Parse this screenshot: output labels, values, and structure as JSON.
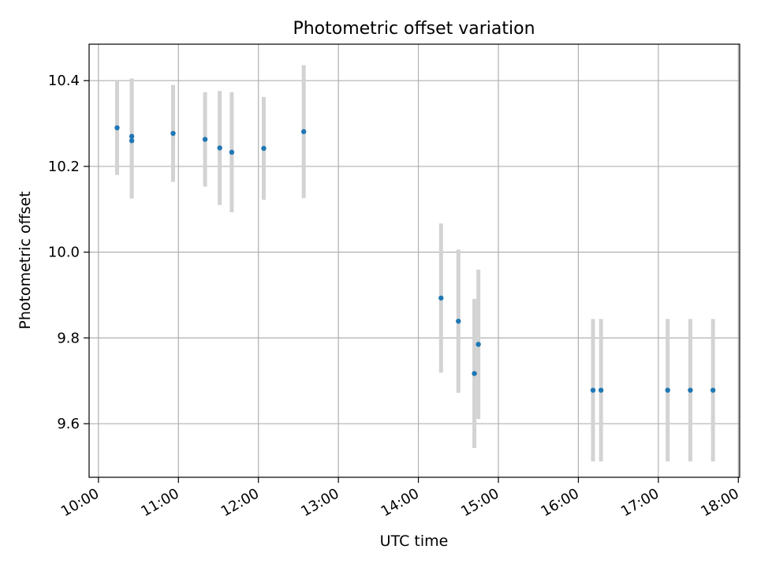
{
  "chart_data": {
    "type": "scatter",
    "title": "Photometric offset variation",
    "xlabel": "UTC time",
    "ylabel": "Photometric offset",
    "xlim": [
      "09:53",
      "18:01"
    ],
    "ylim": [
      9.475,
      10.485
    ],
    "x_ticks": [
      "10:00",
      "11:00",
      "12:00",
      "13:00",
      "14:00",
      "15:00",
      "16:00",
      "17:00",
      "18:00"
    ],
    "y_ticks": [
      "9.6",
      "9.8",
      "10.0",
      "10.2",
      "10.4"
    ],
    "grid": true,
    "legend": "none",
    "series": [
      {
        "marker_color": "#1f77b4",
        "errorbar_color": "#d3d3d3",
        "points": [
          {
            "x": "10:14",
            "y": 10.29,
            "err": 0.11
          },
          {
            "x": "10:25",
            "y": 10.26,
            "err": 0.135
          },
          {
            "x": "10:25",
            "y": 10.27,
            "err": 0.135
          },
          {
            "x": "10:56",
            "y": 10.277,
            "err": 0.113
          },
          {
            "x": "11:20",
            "y": 10.263,
            "err": 0.11
          },
          {
            "x": "11:31",
            "y": 10.243,
            "err": 0.133
          },
          {
            "x": "11:40",
            "y": 10.233,
            "err": 0.14
          },
          {
            "x": "12:04",
            "y": 10.242,
            "err": 0.12
          },
          {
            "x": "12:34",
            "y": 10.281,
            "err": 0.155
          },
          {
            "x": "14:17",
            "y": 9.893,
            "err": 0.174
          },
          {
            "x": "14:30",
            "y": 9.839,
            "err": 0.167
          },
          {
            "x": "14:42",
            "y": 9.717,
            "err": 0.174
          },
          {
            "x": "14:45",
            "y": 9.785,
            "err": 0.174
          },
          {
            "x": "16:11",
            "y": 9.678,
            "err": 0.166
          },
          {
            "x": "16:17",
            "y": 9.678,
            "err": 0.166
          },
          {
            "x": "17:07",
            "y": 9.678,
            "err": 0.166
          },
          {
            "x": "17:24",
            "y": 9.678,
            "err": 0.166
          },
          {
            "x": "17:41",
            "y": 9.678,
            "err": 0.166
          }
        ]
      }
    ]
  }
}
